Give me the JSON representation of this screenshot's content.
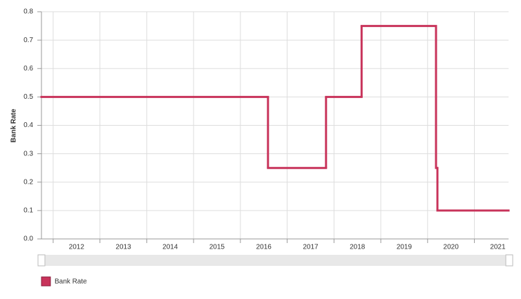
{
  "chart_data": {
    "type": "step",
    "y_label": "Bank Rate",
    "x": [
      2011.75,
      2016.59,
      2017.83,
      2018.59,
      2020.18,
      2020.21
    ],
    "series": [
      {
        "name": "Bank Rate",
        "color": "#c8335a",
        "values": [
          0.5,
          0.25,
          0.5,
          0.75,
          0.25,
          0.1
        ]
      }
    ],
    "xlim": [
      2011.75,
      2021.73
    ],
    "xticks": [
      2012,
      2013,
      2014,
      2015,
      2016,
      2017,
      2018,
      2019,
      2020,
      2021
    ],
    "ylim": [
      0,
      0.8
    ],
    "yticks": [
      {
        "value": 0,
        "label": "0.0"
      },
      0.1,
      0.2,
      0.3,
      0.4,
      0.5,
      0.6,
      0.7,
      0.8
    ],
    "grid": true
  }
}
